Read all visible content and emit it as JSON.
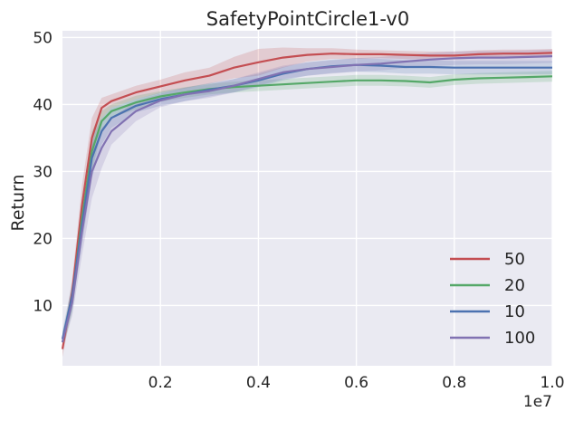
{
  "chart_data": {
    "type": "line",
    "title": "SafetyPointCircle1-v0",
    "xlabel": "",
    "ylabel": "Return",
    "x_offset_label": "1e7",
    "xlim": [
      0.0,
      1.0
    ],
    "ylim": [
      1,
      51
    ],
    "x_ticks": [
      0.2,
      0.4,
      0.6,
      0.8,
      1.0
    ],
    "x_tick_labels": [
      "0.2",
      "0.4",
      "0.6",
      "0.8",
      "1.0"
    ],
    "y_ticks": [
      10,
      20,
      30,
      40,
      50
    ],
    "y_tick_labels": [
      "10",
      "20",
      "30",
      "40",
      "50"
    ],
    "grid": true,
    "legend_position": "lower-right",
    "background_color": "#EAEAF2",
    "series": [
      {
        "name": "50",
        "color": "#C44E52",
        "x": [
          0.0,
          0.02,
          0.04,
          0.06,
          0.08,
          0.1,
          0.15,
          0.2,
          0.25,
          0.3,
          0.35,
          0.4,
          0.45,
          0.5,
          0.55,
          0.6,
          0.65,
          0.7,
          0.75,
          0.8,
          0.85,
          0.9,
          0.95,
          1.0
        ],
        "values": [
          3.5,
          12,
          25,
          35,
          39.5,
          40.5,
          41.8,
          42.7,
          43.6,
          44.3,
          45.5,
          46.3,
          47.0,
          47.4,
          47.6,
          47.5,
          47.5,
          47.4,
          47.3,
          47.3,
          47.5,
          47.6,
          47.6,
          47.7
        ],
        "band_width": [
          1.2,
          2.0,
          3.0,
          3.0,
          1.5,
          1.0,
          1.0,
          1.0,
          1.2,
          1.2,
          1.6,
          2.0,
          1.5,
          1.0,
          0.8,
          0.7,
          0.6,
          0.6,
          0.6,
          0.6,
          0.6,
          0.6,
          0.6,
          0.6
        ]
      },
      {
        "name": "20",
        "color": "#55A868",
        "x": [
          0.0,
          0.02,
          0.04,
          0.06,
          0.08,
          0.1,
          0.15,
          0.2,
          0.25,
          0.3,
          0.35,
          0.4,
          0.45,
          0.5,
          0.55,
          0.6,
          0.65,
          0.7,
          0.75,
          0.8,
          0.85,
          0.9,
          0.95,
          1.0
        ],
        "values": [
          4.5,
          11,
          23,
          33,
          37.5,
          39.0,
          40.3,
          41.2,
          41.8,
          42.3,
          42.6,
          42.8,
          43.0,
          43.2,
          43.4,
          43.6,
          43.6,
          43.5,
          43.3,
          43.7,
          43.9,
          44.0,
          44.1,
          44.2
        ],
        "band_width": [
          1.2,
          2.0,
          3.0,
          3.0,
          1.5,
          1.0,
          1.0,
          0.8,
          0.8,
          0.8,
          0.8,
          0.8,
          0.8,
          0.8,
          0.8,
          0.8,
          0.8,
          0.8,
          0.8,
          0.8,
          0.8,
          0.8,
          0.8,
          0.8
        ]
      },
      {
        "name": "10",
        "color": "#4C72B0",
        "x": [
          0.0,
          0.02,
          0.04,
          0.06,
          0.08,
          0.1,
          0.15,
          0.2,
          0.25,
          0.3,
          0.35,
          0.4,
          0.45,
          0.5,
          0.55,
          0.6,
          0.65,
          0.7,
          0.75,
          0.8,
          0.85,
          0.9,
          0.95,
          1.0
        ],
        "values": [
          5.0,
          11.5,
          22,
          32,
          36.0,
          38.0,
          39.8,
          40.8,
          41.5,
          42.2,
          42.8,
          43.6,
          44.6,
          45.3,
          45.7,
          45.9,
          45.8,
          45.6,
          45.6,
          45.5,
          45.5,
          45.5,
          45.5,
          45.5
        ],
        "band_width": [
          1.2,
          2.0,
          3.0,
          3.0,
          2.0,
          1.5,
          1.0,
          1.0,
          1.0,
          1.0,
          1.0,
          1.0,
          1.0,
          1.0,
          1.0,
          1.0,
          1.0,
          1.0,
          1.0,
          1.0,
          1.0,
          1.0,
          1.0,
          1.0
        ]
      },
      {
        "name": "100",
        "color": "#8172B2",
        "x": [
          0.0,
          0.02,
          0.04,
          0.06,
          0.08,
          0.1,
          0.15,
          0.2,
          0.25,
          0.3,
          0.35,
          0.4,
          0.45,
          0.5,
          0.55,
          0.6,
          0.65,
          0.7,
          0.75,
          0.8,
          0.85,
          0.9,
          0.95,
          1.0
        ],
        "values": [
          4.5,
          10.5,
          21,
          30,
          33.5,
          36.0,
          39.0,
          40.6,
          41.5,
          42.0,
          42.8,
          43.8,
          44.8,
          45.3,
          45.6,
          45.9,
          46.1,
          46.4,
          46.7,
          46.9,
          47.0,
          47.0,
          47.1,
          47.2
        ],
        "band_width": [
          1.2,
          2.0,
          3.5,
          4.0,
          3.0,
          2.0,
          1.5,
          1.0,
          1.0,
          1.0,
          1.0,
          1.0,
          1.0,
          1.0,
          1.0,
          1.0,
          1.0,
          1.0,
          1.0,
          1.0,
          1.0,
          1.0,
          1.0,
          1.0
        ]
      }
    ]
  }
}
